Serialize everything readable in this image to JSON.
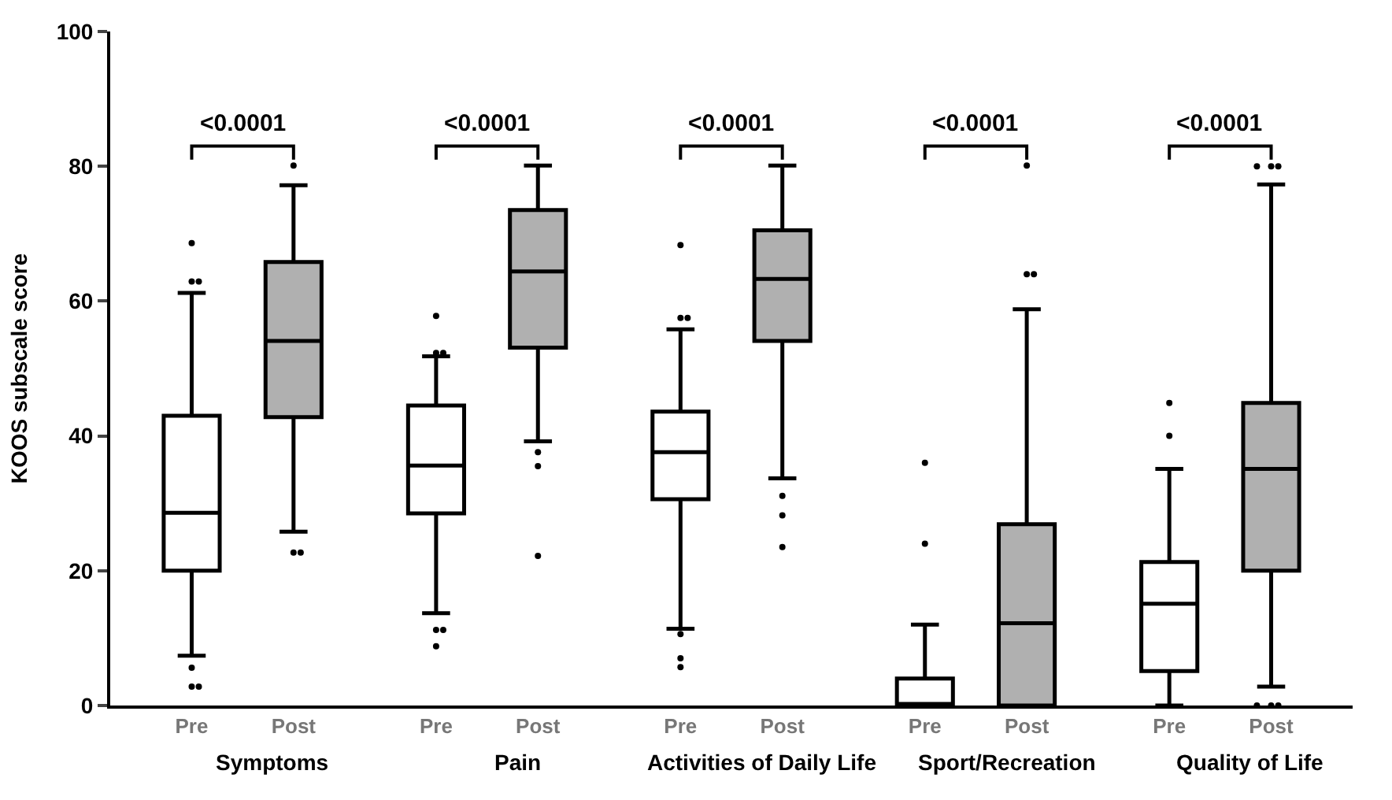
{
  "chart_data": {
    "type": "box",
    "ylabel": "KOOS subscale score",
    "ylim": [
      0,
      100
    ],
    "yticks": [
      0,
      20,
      40,
      60,
      80,
      100
    ],
    "categories": [
      "Pre",
      "Post",
      "Pre",
      "Post",
      "Pre",
      "Post",
      "Pre",
      "Post",
      "Pre",
      "Post"
    ],
    "colors": [
      "#ffffff",
      "#b0b0b0",
      "#ffffff",
      "#b0b0b0",
      "#ffffff",
      "#b0b0b0",
      "#ffffff",
      "#b0b0b0",
      "#ffffff",
      "#b0b0b0"
    ],
    "boxes": [
      {
        "low": 7.4,
        "q1": 20.0,
        "median": 28.6,
        "q3": 43.0,
        "high": 61.2,
        "outliers": [
          68.6,
          62.9,
          62.9,
          5.6,
          2.8,
          2.8
        ]
      },
      {
        "low": 25.8,
        "q1": 42.8,
        "median": 54.1,
        "q3": 65.8,
        "high": 77.2,
        "outliers": [
          80.1,
          22.7,
          22.7
        ]
      },
      {
        "low": 13.7,
        "q1": 28.5,
        "median": 35.6,
        "q3": 44.5,
        "high": 51.8,
        "outliers": [
          57.8,
          52.3,
          52.3,
          11.2,
          11.2,
          8.8
        ]
      },
      {
        "low": 39.2,
        "q1": 53.1,
        "median": 64.4,
        "q3": 73.5,
        "high": 80.1,
        "outliers": [
          37.6,
          35.5,
          22.2
        ]
      },
      {
        "low": 11.4,
        "q1": 30.6,
        "median": 37.6,
        "q3": 43.6,
        "high": 55.8,
        "outliers": [
          68.3,
          57.5,
          57.5,
          10.6,
          7.0,
          5.7
        ]
      },
      {
        "low": 33.7,
        "q1": 54.1,
        "median": 63.3,
        "q3": 70.5,
        "high": 80.1,
        "outliers": [
          31.1,
          28.2,
          23.5
        ]
      },
      {
        "low": 0,
        "q1": 0,
        "median": 0,
        "q3": 4.0,
        "high": 12.0,
        "outliers": [
          36.0,
          24.0
        ]
      },
      {
        "low": 0,
        "q1": 0,
        "median": 12.2,
        "q3": 26.9,
        "high": 58.8,
        "outliers": [
          80.1,
          64.0,
          64.0
        ]
      },
      {
        "low": 0,
        "q1": 5.1,
        "median": 15.1,
        "q3": 21.3,
        "high": 35.1,
        "outliers": [
          44.9,
          40.0
        ]
      },
      {
        "low": 2.8,
        "q1": 20.0,
        "median": 35.1,
        "q3": 44.9,
        "high": 77.3,
        "outliers": [
          80.0,
          80.0,
          80.0,
          0,
          0,
          0
        ]
      }
    ],
    "annotations": [
      "<0.0001",
      "Symptoms",
      "<0.0001",
      "Pain",
      "<0.0001",
      "Activities of Daily Life",
      "<0.0001",
      "Sport/Recreation",
      "<0.0001",
      "Quality of Life"
    ]
  }
}
